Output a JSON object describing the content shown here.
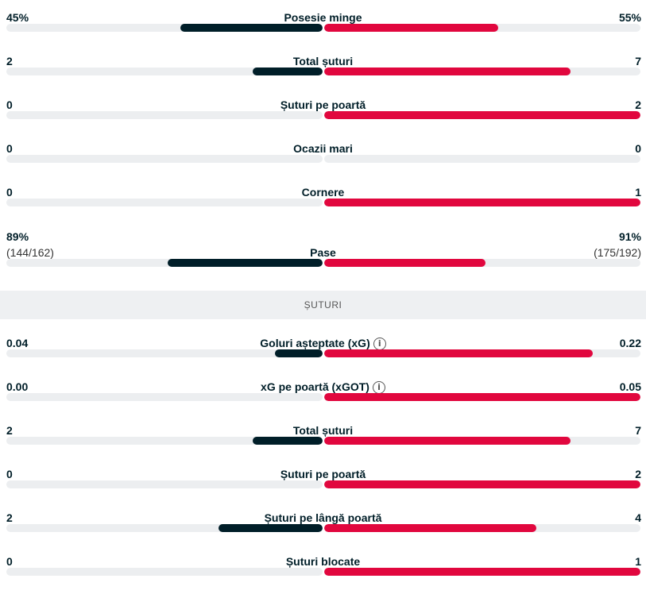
{
  "summary": [
    {
      "label": "Posesie minge",
      "home": "45%",
      "away": "55%",
      "home_ratio": 0.45,
      "away_ratio": 0.55
    },
    {
      "label": "Total șuturi",
      "home": "2",
      "away": "7",
      "home_ratio": 0.22,
      "away_ratio": 0.78
    },
    {
      "label": "Șuturi pe poartă",
      "home": "0",
      "away": "2",
      "home_ratio": 0,
      "away_ratio": 1
    },
    {
      "label": "Ocazii mari",
      "home": "0",
      "away": "0",
      "home_ratio": 0,
      "away_ratio": 0
    },
    {
      "label": "Cornere",
      "home": "0",
      "away": "1",
      "home_ratio": 0,
      "away_ratio": 1
    },
    {
      "label": "Pase",
      "home": "89%",
      "home_sub": "(144/162)",
      "away": "91%",
      "away_sub": "(175/192)",
      "home_ratio": 0.49,
      "away_ratio": 0.51
    }
  ],
  "section_title": "ȘUTURI",
  "shots": [
    {
      "label": "Goluri așteptate (xG)",
      "info": true,
      "home": "0.04",
      "away": "0.22",
      "home_ratio": 0.15,
      "away_ratio": 0.85
    },
    {
      "label": "xG pe poartă (xGOT)",
      "info": true,
      "home": "0.00",
      "away": "0.05",
      "home_ratio": 0,
      "away_ratio": 1
    },
    {
      "label": "Total șuturi",
      "home": "2",
      "away": "7",
      "home_ratio": 0.22,
      "away_ratio": 0.78
    },
    {
      "label": "Șuturi pe poartă",
      "home": "0",
      "away": "2",
      "home_ratio": 0,
      "away_ratio": 1
    },
    {
      "label": "Șuturi pe lângă poartă",
      "home": "2",
      "away": "4",
      "home_ratio": 0.33,
      "away_ratio": 0.67
    },
    {
      "label": "Șuturi blocate",
      "home": "0",
      "away": "1",
      "home_ratio": 0,
      "away_ratio": 1
    }
  ],
  "info_icon": "i",
  "colors": {
    "home": "#001e28",
    "away": "#e1073e",
    "track": "#eceef0"
  }
}
